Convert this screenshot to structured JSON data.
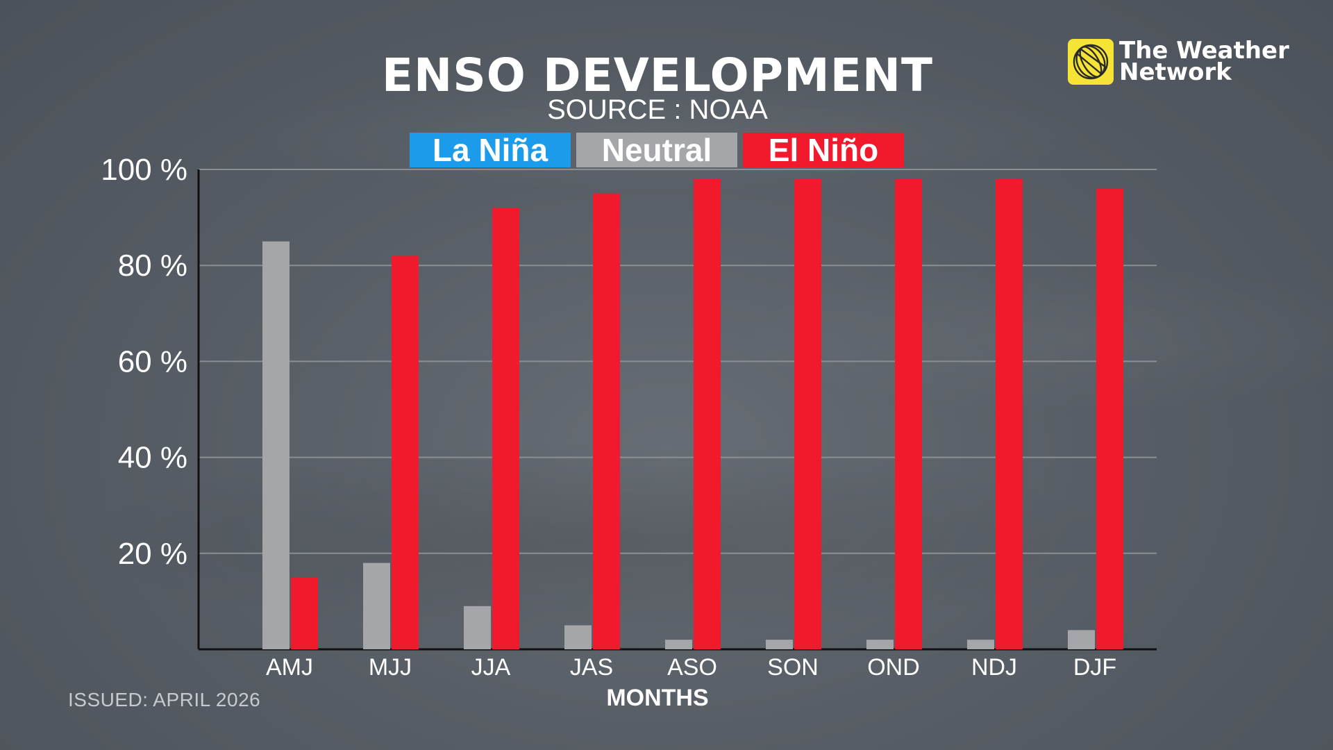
{
  "brand": {
    "line1": "The Weather",
    "line2": "Network",
    "logo_color": "#f5e335"
  },
  "footer": {
    "issued": "ISSUED: APRIL 2026"
  },
  "chart_data": {
    "type": "bar",
    "title": "ENSO DEVELOPMENT",
    "subtitle": "SOURCE : NOAA",
    "xlabel": "MONTHS",
    "ylabel": "",
    "ylim": [
      0,
      100
    ],
    "yticks": [
      20,
      40,
      60,
      80,
      100
    ],
    "ytick_labels": [
      "20 %",
      "40 %",
      "60 %",
      "80 %",
      "100 %"
    ],
    "grid": true,
    "legend_position": "top-center",
    "categories": [
      "AMJ",
      "MJJ",
      "JJA",
      "JAS",
      "ASO",
      "SON",
      "OND",
      "NDJ",
      "DJF"
    ],
    "series": [
      {
        "name": "La Niña",
        "color": "#1b9bea",
        "values": [
          0,
          0,
          0,
          0,
          0,
          0,
          0,
          0,
          0
        ]
      },
      {
        "name": "Neutral",
        "color": "#a4a6a9",
        "values": [
          85,
          18,
          9,
          5,
          2,
          2,
          2,
          2,
          4
        ]
      },
      {
        "name": "El Niño",
        "color": "#f01a2c",
        "values": [
          15,
          82,
          92,
          95,
          98,
          98,
          98,
          98,
          96
        ]
      }
    ]
  }
}
